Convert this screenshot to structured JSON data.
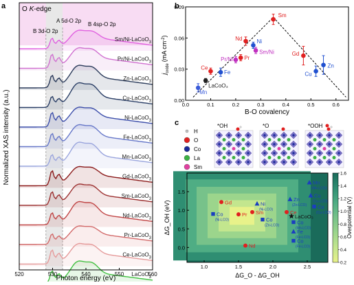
{
  "panel_a": {
    "label": "a",
    "edge_label": "O K-edge",
    "annotations": [
      "B 3d-O 2p",
      "A 5d-O 2p",
      "B 4sp-O 2p"
    ],
    "xlabel": "Photon energy (eV)",
    "ylabel": "Normalized XAS intensity (a.u.)",
    "xticks": [
      "520",
      "530",
      "540",
      "550",
      "560"
    ],
    "traces": [
      "Sm/Ni-LaCoO3",
      "Pr/Ni-LaCoO3",
      "Zn-LaCoO3",
      "Cu-LaCoO3",
      "Ni-LaCoO3",
      "Fe-LaCoO3",
      "Mn-LaCoO3",
      "Gd-LaCoO3",
      "Sm-LaCoO3",
      "Nd-LaCoO3",
      "Pr-LaCoO3",
      "Ce-LaCoO3",
      "LaCoO3"
    ],
    "trace_colors": [
      "#e060e0",
      "#d070d0",
      "#2a3a5a",
      "#2a3e66",
      "#3c4eaa",
      "#6677c8",
      "#9aa5dd",
      "#8b1a1a",
      "#9c3030",
      "#c04444",
      "#d26a6a",
      "#e59a9a",
      "#40c040"
    ]
  },
  "panel_b": {
    "label": "b",
    "xlabel": "B-O covalency",
    "ylabel": "j_oxide (mA cm^-2)",
    "xticks": [
      "0.0",
      "0.1",
      "0.2",
      "0.3",
      "0.4",
      "0.5",
      "0.6"
    ],
    "yticks": [
      "0.00",
      "0.03",
      "0.06",
      "0.09"
    ],
    "points": [
      {
        "name": "LaCoO3",
        "display": "LaCoO₃",
        "x": 0.08,
        "y": 0.019,
        "err": 0.002,
        "color": "#222222"
      },
      {
        "name": "Mn",
        "display": "Mn",
        "x": 0.05,
        "y": 0.012,
        "err": 0.004,
        "color": "#3a5bd9"
      },
      {
        "name": "Ce",
        "display": "Ce",
        "x": 0.1,
        "y": 0.028,
        "err": 0.003,
        "color": "#e02020"
      },
      {
        "name": "Fe",
        "display": "Fe",
        "x": 0.14,
        "y": 0.027,
        "err": 0.004,
        "color": "#2050d0"
      },
      {
        "name": "Pr/Ni",
        "display": "Pr/Ni",
        "x": 0.2,
        "y": 0.039,
        "err": 0.003,
        "color": "#c030c0"
      },
      {
        "name": "Pr",
        "display": "Pr",
        "x": 0.22,
        "y": 0.041,
        "err": 0.003,
        "color": "#e02020"
      },
      {
        "name": "Nd",
        "display": "Nd",
        "x": 0.24,
        "y": 0.057,
        "err": 0.004,
        "color": "#e02020"
      },
      {
        "name": "Ni",
        "display": "Ni",
        "x": 0.27,
        "y": 0.053,
        "err": 0.003,
        "color": "#2050d0"
      },
      {
        "name": "Sm/Ni",
        "display": "Sm/Ni",
        "x": 0.28,
        "y": 0.048,
        "err": 0.003,
        "color": "#c030c0"
      },
      {
        "name": "Sm",
        "display": "Sm",
        "x": 0.35,
        "y": 0.078,
        "err": 0.005,
        "color": "#e02020"
      },
      {
        "name": "Gd",
        "display": "Gd",
        "x": 0.47,
        "y": 0.043,
        "err": 0.009,
        "color": "#e02020"
      },
      {
        "name": "Cu",
        "display": "Cu",
        "x": 0.52,
        "y": 0.028,
        "err": 0.005,
        "color": "#2050d0"
      },
      {
        "name": "Zn",
        "display": "Zn",
        "x": 0.55,
        "y": 0.034,
        "err": 0.009,
        "color": "#2050d0"
      }
    ],
    "trend_lines": [
      {
        "x": [
          0.03,
          0.35
        ],
        "y": [
          0.003,
          0.08
        ]
      },
      {
        "x": [
          0.35,
          0.64
        ],
        "y": [
          0.08,
          0.003
        ]
      }
    ]
  },
  "panel_c": {
    "label": "c",
    "legend": [
      {
        "label": "H",
        "color": "#cccccc"
      },
      {
        "label": "O",
        "color": "#e02020"
      },
      {
        "label": "Co",
        "color": "#1a2a99"
      },
      {
        "label": "La",
        "color": "#3cb043"
      },
      {
        "label": "Sm",
        "color": "#e040a0"
      }
    ],
    "structures": [
      "*OH",
      "*O",
      "*OOH"
    ],
    "heatmap": {
      "xlabel": "ΔG_O - ΔG_OH",
      "ylabel": "ΔG_OH (eV)",
      "xticks": [
        "1.0",
        "1.5",
        "2.0",
        "2.5"
      ],
      "yticks": [
        "0.0",
        "0.5",
        "1.0",
        "1.5"
      ],
      "colorbar_label": "Overpotential (V)",
      "colorbar_ticks": [
        "1.6",
        "1.4",
        "1.2",
        "1.0",
        "0.8",
        "0.6",
        "0.4",
        "0.2"
      ],
      "colormap": [
        "#e8f28a",
        "#c3e68e",
        "#9cd58c",
        "#77c28a",
        "#4fad84",
        "#2f8e72",
        "#1a6b5a"
      ],
      "points": [
        {
          "label": "Gd",
          "sub": "",
          "marker": "circle",
          "color": "#e02020",
          "x": 1.25,
          "y": 1.22
        },
        {
          "label": "Co",
          "sub": "(Ni-LCO)",
          "marker": "square",
          "color": "#1a3ec0",
          "x": 1.13,
          "y": 0.9
        },
        {
          "label": "Pr",
          "sub": "",
          "marker": "circle",
          "color": "#e02020",
          "x": 1.5,
          "y": 0.89
        },
        {
          "label": "Sm",
          "sub": "",
          "marker": "circle",
          "color": "#e02020",
          "x": 1.7,
          "y": 0.95
        },
        {
          "label": "Ni",
          "sub": "(Ni-LCO)",
          "marker": "triangle",
          "color": "#1a3ec0",
          "x": 1.77,
          "y": 1.18
        },
        {
          "label": "Co",
          "sub": "(Zn-LCO)",
          "marker": "square",
          "color": "#1a3ec0",
          "x": 1.85,
          "y": 0.75
        },
        {
          "label": "Nd",
          "sub": "",
          "marker": "circle",
          "color": "#e02020",
          "x": 1.6,
          "y": 0.05
        },
        {
          "label": "Ce",
          "sub": "",
          "marker": "circle",
          "color": "#e02020",
          "x": 2.2,
          "y": 0.95
        },
        {
          "label": "Zn",
          "sub": "(Zn-LCO)",
          "marker": "triangle",
          "color": "#1a3ec0",
          "x": 2.25,
          "y": 1.3
        },
        {
          "label": "LaCoO3",
          "display": "LaCoO₃",
          "sub": "",
          "marker": "star",
          "color": "#111111",
          "x": 2.27,
          "y": 0.84
        },
        {
          "label": "Co",
          "sub": "(Mn-LCO)",
          "marker": "square",
          "color": "#1a3ec0",
          "x": 2.3,
          "y": 0.68
        },
        {
          "label": "Mn",
          "sub": "(Mn-LCO)",
          "marker": "triangle",
          "color": "#1a3ec0",
          "x": 2.53,
          "y": 1.75
        },
        {
          "label": "Cu",
          "sub": "(Cu-LCO)",
          "marker": "triangle",
          "color": "#1a3ec0",
          "x": 2.55,
          "y": 1.4
        },
        {
          "label": "Co",
          "sub": "(Cu-LCO)",
          "marker": "square",
          "color": "#1a3ec0",
          "x": 2.6,
          "y": 1.1
        },
        {
          "label": "Fe",
          "sub": "(Fe-LCO)",
          "marker": "triangle",
          "color": "#1a3ec0",
          "x": 2.3,
          "y": 0.43
        },
        {
          "label": "Co",
          "sub": "(Fe-LCO)",
          "marker": "square",
          "color": "#1a3ec0",
          "x": 2.3,
          "y": 0.18
        }
      ]
    }
  },
  "chart_data": [
    {
      "type": "line",
      "title": "O K-edge",
      "xlabel": "Photon energy (eV)",
      "ylabel": "Normalized XAS intensity (a.u.)",
      "xlim": [
        520,
        560
      ],
      "series": [
        {
          "name": "Sm/Ni-LaCoO3"
        },
        {
          "name": "Pr/Ni-LaCoO3"
        },
        {
          "name": "Zn-LaCoO3"
        },
        {
          "name": "Cu-LaCoO3"
        },
        {
          "name": "Ni-LaCoO3"
        },
        {
          "name": "Fe-LaCoO3"
        },
        {
          "name": "Mn-LaCoO3"
        },
        {
          "name": "Gd-LaCoO3"
        },
        {
          "name": "Sm-LaCoO3"
        },
        {
          "name": "Nd-LaCoO3"
        },
        {
          "name": "Pr-LaCoO3"
        },
        {
          "name": "Ce-LaCoO3"
        },
        {
          "name": "LaCoO3"
        }
      ]
    },
    {
      "type": "scatter",
      "xlabel": "B-O covalency",
      "ylabel": "j_oxide (mA cm^-2)",
      "xlim": [
        0.0,
        0.65
      ],
      "ylim": [
        0.0,
        0.09
      ],
      "series": [
        {
          "name": "LaCoO3",
          "x": [
            0.08
          ],
          "y": [
            0.019
          ]
        },
        {
          "name": "Mn",
          "x": [
            0.05
          ],
          "y": [
            0.012
          ]
        },
        {
          "name": "Ce",
          "x": [
            0.1
          ],
          "y": [
            0.028
          ]
        },
        {
          "name": "Fe",
          "x": [
            0.14
          ],
          "y": [
            0.027
          ]
        },
        {
          "name": "Pr/Ni",
          "x": [
            0.2
          ],
          "y": [
            0.039
          ]
        },
        {
          "name": "Pr",
          "x": [
            0.22
          ],
          "y": [
            0.041
          ]
        },
        {
          "name": "Nd",
          "x": [
            0.24
          ],
          "y": [
            0.057
          ]
        },
        {
          "name": "Ni",
          "x": [
            0.27
          ],
          "y": [
            0.053
          ]
        },
        {
          "name": "Sm/Ni",
          "x": [
            0.28
          ],
          "y": [
            0.048
          ]
        },
        {
          "name": "Sm",
          "x": [
            0.35
          ],
          "y": [
            0.078
          ]
        },
        {
          "name": "Gd",
          "x": [
            0.47
          ],
          "y": [
            0.043
          ]
        },
        {
          "name": "Cu",
          "x": [
            0.52
          ],
          "y": [
            0.028
          ]
        },
        {
          "name": "Zn",
          "x": [
            0.55
          ],
          "y": [
            0.034
          ]
        }
      ]
    },
    {
      "type": "heatmap",
      "xlabel": "ΔG_O - ΔG_OH",
      "ylabel": "ΔG_OH (eV)",
      "xlim": [
        0.75,
        2.8
      ],
      "ylim": [
        -0.4,
        2.0
      ],
      "colorbar": {
        "label": "Overpotential (V)",
        "range": [
          0.2,
          1.6
        ]
      }
    }
  ]
}
